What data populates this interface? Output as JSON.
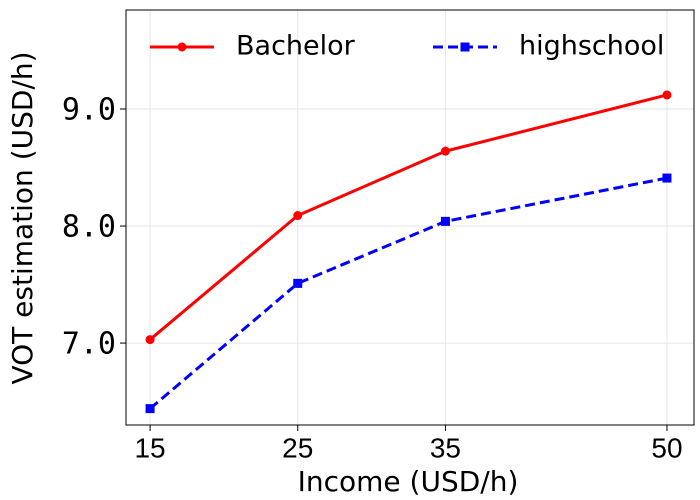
{
  "chart_data": {
    "type": "line",
    "x_label": "Income (USD/h)",
    "y_label": "VOT estimation (USD/h)",
    "x": [
      15,
      25,
      35,
      50
    ],
    "series": [
      {
        "name": "Bachelor",
        "color": "#ff0000",
        "dash": "solid",
        "marker": "circle",
        "values": [
          7.03,
          8.09,
          8.64,
          9.12
        ]
      },
      {
        "name": "highschool",
        "color": "#0000ff",
        "dash": "dashed",
        "marker": "square",
        "values": [
          6.44,
          7.51,
          8.04,
          8.41
        ]
      }
    ],
    "xlim": [
      13.37,
      51.83
    ],
    "xticks": [
      15,
      25,
      35,
      50
    ],
    "ylim": [
      6.3,
      9.846
    ],
    "yticks": [
      {
        "value": 7,
        "label": "7.0"
      },
      {
        "value": 8,
        "label": "8.0"
      },
      {
        "value": 9,
        "label": "9.0"
      }
    ],
    "grid": true,
    "legend": "top"
  }
}
